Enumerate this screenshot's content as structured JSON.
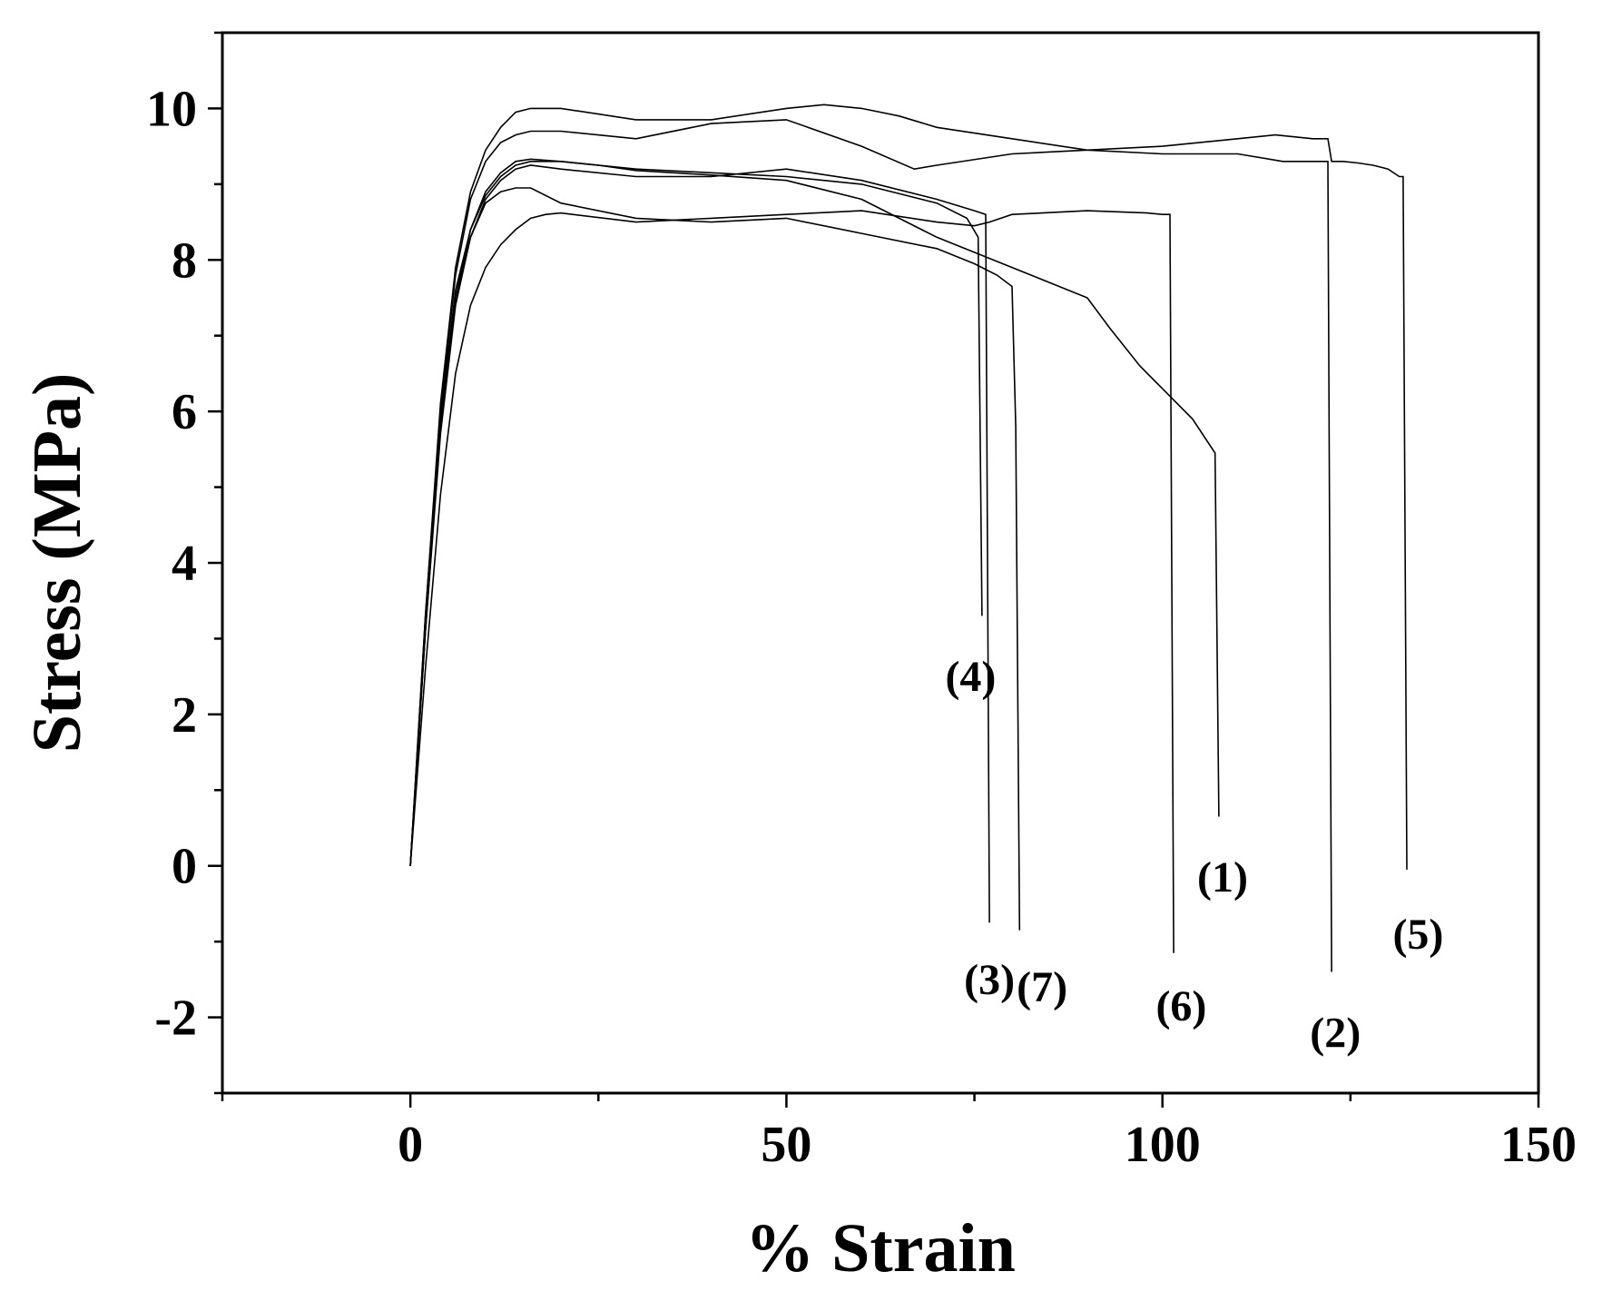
{
  "chart_data": {
    "type": "line",
    "title": "",
    "xlabel": "% Strain",
    "ylabel": "Stress (MPa)",
    "xlim": [
      -25,
      150
    ],
    "ylim": [
      -3,
      11
    ],
    "xticks": [
      0,
      50,
      100,
      150
    ],
    "yticks": [
      -2,
      0,
      2,
      4,
      6,
      8,
      10
    ],
    "grid": false,
    "line_color": "#000000",
    "series": [
      {
        "x": [
          0,
          2,
          4,
          6,
          8,
          10,
          12,
          14,
          16,
          20,
          25,
          30,
          40,
          50,
          60,
          70,
          80,
          90,
          93,
          97,
          100,
          104,
          107,
          107.5
        ],
        "y": [
          0,
          3.2,
          5.9,
          7.6,
          8.4,
          8.9,
          9.15,
          9.3,
          9.33,
          9.3,
          9.25,
          9.18,
          9.12,
          9.05,
          8.8,
          8.3,
          7.9,
          7.5,
          7.1,
          6.6,
          6.3,
          5.9,
          5.45,
          0.65
        ]
      },
      {
        "x": [
          0,
          2,
          4,
          6,
          8,
          10,
          12,
          14,
          16,
          20,
          30,
          40,
          50,
          55,
          60,
          65,
          70,
          80,
          90,
          100,
          110,
          116,
          121,
          122,
          122.5
        ],
        "y": [
          0,
          3.3,
          6.1,
          7.9,
          8.9,
          9.45,
          9.75,
          9.95,
          10.0,
          10.0,
          9.85,
          9.85,
          10.0,
          10.05,
          10.0,
          9.9,
          9.75,
          9.6,
          9.45,
          9.4,
          9.4,
          9.3,
          9.3,
          9.3,
          -1.4
        ]
      },
      {
        "x": [
          0,
          2,
          4,
          6,
          8,
          10,
          12,
          14,
          16,
          20,
          30,
          40,
          50,
          60,
          70,
          75,
          76.5,
          77
        ],
        "y": [
          0,
          3.1,
          5.8,
          7.5,
          8.3,
          8.8,
          9.05,
          9.2,
          9.25,
          9.2,
          9.1,
          9.1,
          9.2,
          9.05,
          8.8,
          8.65,
          8.6,
          -0.75
        ]
      },
      {
        "x": [
          0,
          2,
          4,
          6,
          8,
          10,
          12,
          14,
          16,
          20,
          30,
          40,
          50,
          60,
          70,
          74,
          75.5,
          76
        ],
        "y": [
          0,
          3.1,
          5.8,
          7.5,
          8.4,
          8.85,
          9.1,
          9.25,
          9.3,
          9.3,
          9.2,
          9.15,
          9.1,
          9.0,
          8.75,
          8.55,
          8.3,
          3.3
        ]
      },
      {
        "x": [
          0,
          2,
          4,
          6,
          8,
          10,
          12,
          14,
          16,
          20,
          30,
          40,
          50,
          60,
          67,
          70,
          80,
          90,
          100,
          110,
          115,
          120,
          121.5
        ],
        "y": [
          0,
          3.3,
          6.0,
          7.8,
          8.8,
          9.3,
          9.55,
          9.65,
          9.7,
          9.7,
          9.6,
          9.8,
          9.85,
          9.5,
          9.2,
          9.25,
          9.4,
          9.45,
          9.5,
          9.6,
          9.65,
          9.6,
          9.6
        ]
      },
      {
        "x": [
          121.5,
          122,
          122.5,
          124,
          126,
          128,
          130,
          131.5,
          132,
          132.5
        ],
        "y": [
          9.6,
          9.6,
          9.3,
          9.3,
          9.28,
          9.25,
          9.2,
          9.1,
          9.1,
          -0.05
        ]
      },
      {
        "x": [
          0,
          2,
          4,
          6,
          8,
          10,
          12,
          14,
          16,
          18,
          20,
          30,
          40,
          50,
          60,
          70,
          75,
          77,
          80,
          90,
          98,
          100,
          101,
          101.5
        ],
        "y": [
          0,
          2.6,
          4.9,
          6.5,
          7.4,
          7.9,
          8.2,
          8.4,
          8.55,
          8.6,
          8.62,
          8.5,
          8.55,
          8.6,
          8.65,
          8.5,
          8.45,
          8.5,
          8.6,
          8.65,
          8.62,
          8.6,
          8.6,
          -1.15
        ]
      },
      {
        "x": [
          0,
          2,
          4,
          6,
          8,
          10,
          12,
          14,
          16,
          20,
          30,
          40,
          50,
          60,
          70,
          75,
          78,
          80,
          80.5,
          81
        ],
        "y": [
          0,
          3.1,
          5.7,
          7.4,
          8.3,
          8.75,
          8.9,
          8.95,
          8.95,
          8.75,
          8.55,
          8.5,
          8.55,
          8.35,
          8.15,
          7.95,
          7.8,
          7.65,
          5.8,
          -0.85
        ]
      }
    ],
    "annotations": [
      {
        "text": "(1)",
        "x": 108,
        "y": -0.15
      },
      {
        "text": "(2)",
        "x": 123,
        "y": -2.2
      },
      {
        "text": "(3)",
        "x": 77,
        "y": -1.5
      },
      {
        "text": "(4)",
        "x": 74.5,
        "y": 2.5
      },
      {
        "text": "(5)",
        "x": 134,
        "y": -0.9
      },
      {
        "text": "(6)",
        "x": 102.5,
        "y": -1.85
      },
      {
        "text": "(7)",
        "x": 84,
        "y": -1.6
      }
    ]
  }
}
